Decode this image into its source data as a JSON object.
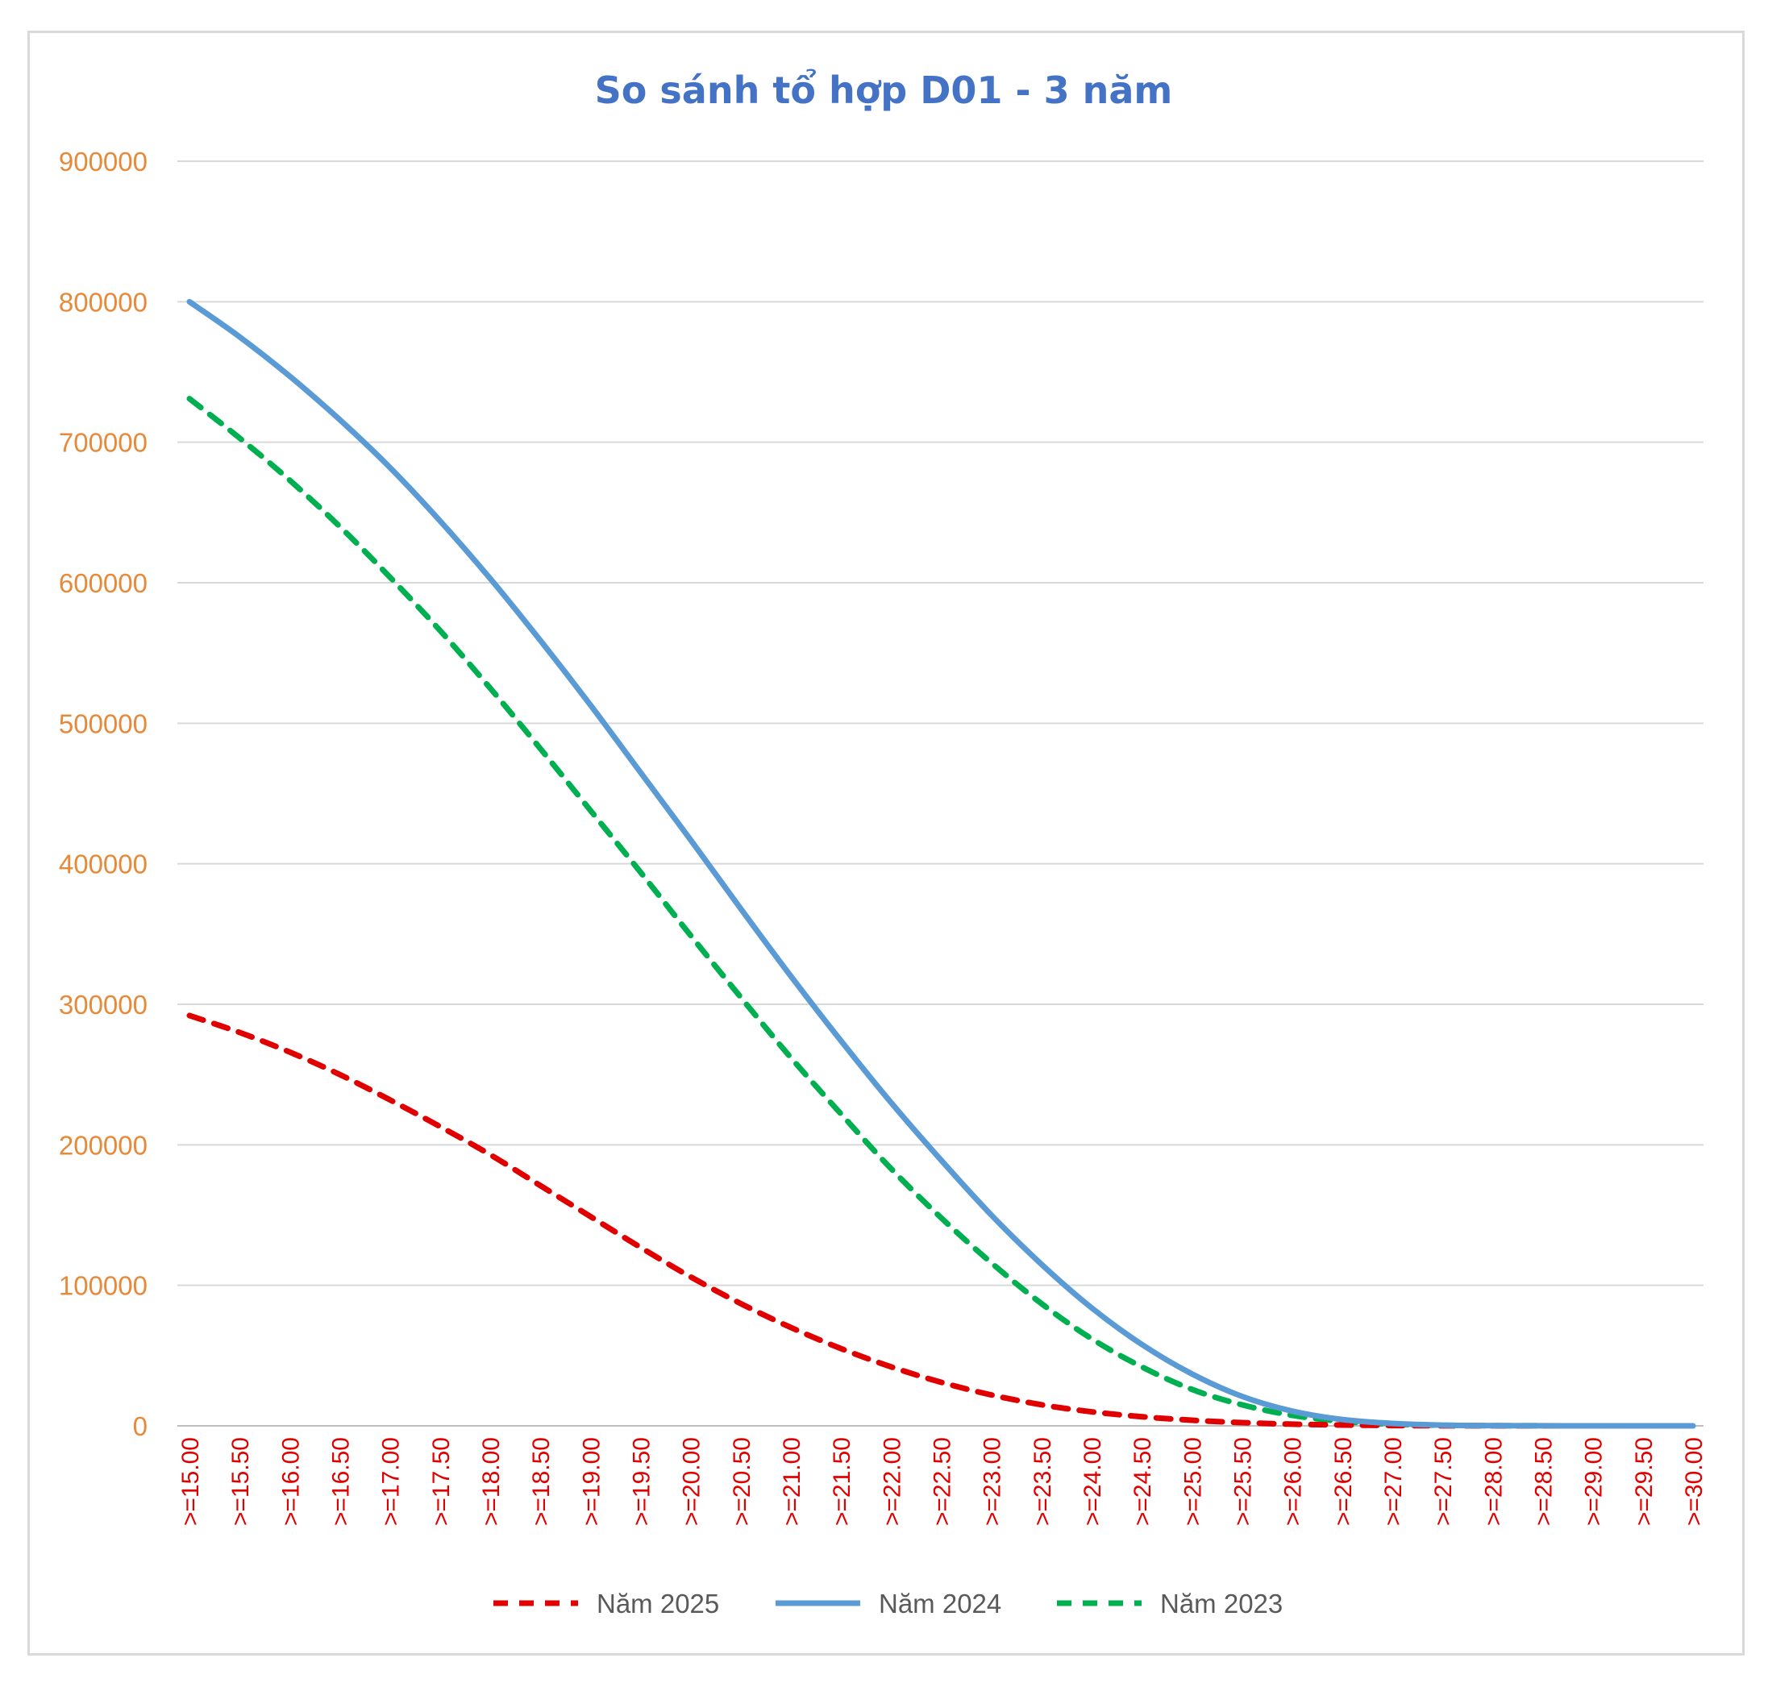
{
  "chart_data": {
    "type": "line",
    "title": "So sánh tổ hợp D01 - 3 năm",
    "xlabel": "",
    "ylabel": "",
    "ylim": [
      0,
      900000
    ],
    "yticks": [
      "0",
      "100000",
      "200000",
      "300000",
      "400000",
      "500000",
      "600000",
      "700000",
      "800000",
      "900000"
    ],
    "grid": true,
    "legend_position": "bottom",
    "categories": [
      ">=15.00",
      ">=15.50",
      ">=16.00",
      ">=16.50",
      ">=17.00",
      ">=17.50",
      ">=18.00",
      ">=18.50",
      ">=19.00",
      ">=19.50",
      ">=20.00",
      ">=20.50",
      ">=21.00",
      ">=21.50",
      ">=22.00",
      ">=22.50",
      ">=23.00",
      ">=23.50",
      ">=24.00",
      ">=24.50",
      ">=25.00",
      ">=25.50",
      ">=26.00",
      ">=26.50",
      ">=27.00",
      ">=27.50",
      ">=28.00",
      ">=28.50",
      ">=29.00",
      ">=29.50",
      ">=30.00"
    ],
    "series": [
      {
        "name": "Năm 2025",
        "color": "#e00000",
        "dash": "dashed",
        "values": [
          292000,
          280000,
          266000,
          250000,
          232000,
          213000,
          193000,
          171000,
          149000,
          127000,
          106000,
          87000,
          70000,
          55000,
          42000,
          31000,
          22000,
          15000,
          10000,
          6500,
          4000,
          2300,
          1200,
          600,
          250,
          100,
          40,
          15,
          5,
          2,
          0
        ]
      },
      {
        "name": "Năm 2024",
        "color": "#5b9bd5",
        "dash": "solid",
        "values": [
          800000,
          775000,
          747000,
          716000,
          682000,
          644000,
          603000,
          559000,
          513000,
          465000,
          417000,
          368000,
          320000,
          274000,
          230000,
          189000,
          150000,
          115000,
          84000,
          58000,
          37000,
          21000,
          10500,
          4500,
          1700,
          500,
          150,
          40,
          10,
          3,
          0
        ]
      },
      {
        "name": "Năm 2023",
        "color": "#00b050",
        "dash": "dashed",
        "values": [
          731000,
          703000,
          673000,
          640000,
          604000,
          566000,
          525000,
          482000,
          438000,
          394000,
          349000,
          305000,
          262000,
          222000,
          183000,
          148000,
          116000,
          87000,
          62000,
          42000,
          26000,
          15000,
          7500,
          3200,
          1200,
          400,
          120,
          30,
          8,
          2,
          0
        ]
      }
    ]
  }
}
